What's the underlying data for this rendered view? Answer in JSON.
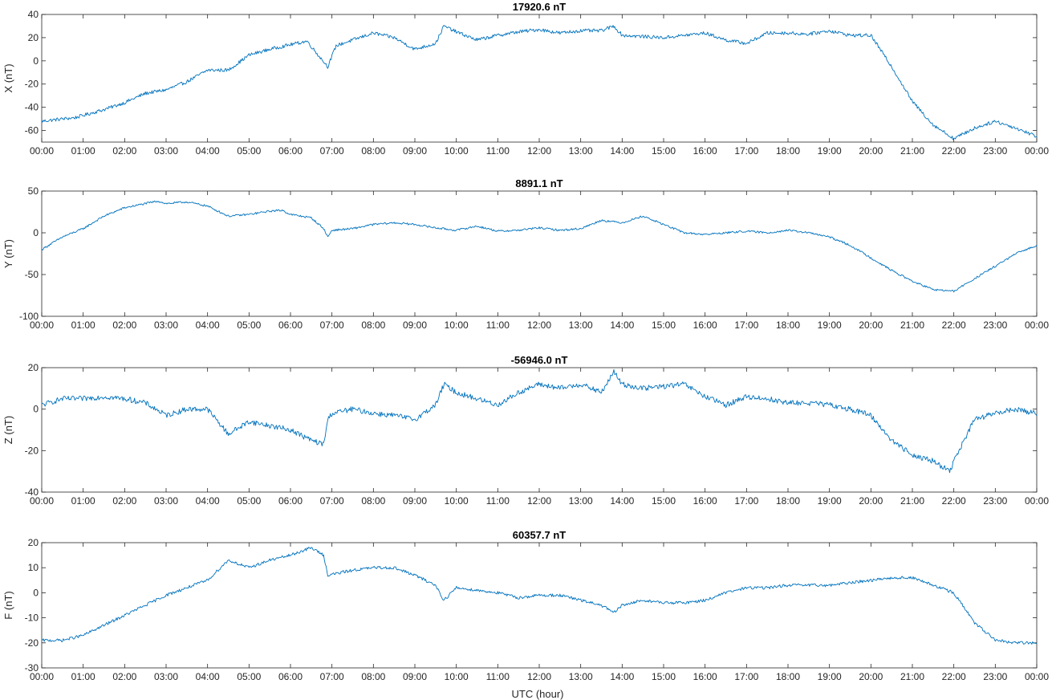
{
  "x_axis_label": "UTC (hour)",
  "chart_data": [
    {
      "type": "line",
      "title": "17920.6 nT",
      "ylabel": "X (nT)",
      "xlim": [
        0,
        24
      ],
      "ylim": [
        -70,
        40
      ],
      "yticks": [
        -60,
        -40,
        -20,
        0,
        20,
        40
      ],
      "xticks": [
        "00:00",
        "01:00",
        "02:00",
        "03:00",
        "04:00",
        "05:00",
        "06:00",
        "07:00",
        "08:00",
        "09:00",
        "10:00",
        "11:00",
        "12:00",
        "13:00",
        "14:00",
        "15:00",
        "16:00",
        "17:00",
        "18:00",
        "19:00",
        "20:00",
        "21:00",
        "22:00",
        "23:00",
        "00:00"
      ],
      "grid": false,
      "color": "#0072BD",
      "noise": 1.5,
      "x": [
        0,
        0.5,
        0.8,
        1.0,
        1.5,
        2.0,
        2.5,
        3.0,
        3.5,
        4.0,
        4.5,
        5.0,
        5.5,
        6.0,
        6.4,
        6.6,
        6.9,
        7.1,
        7.5,
        8.0,
        8.5,
        9.0,
        9.5,
        9.7,
        10.0,
        10.5,
        11.0,
        11.5,
        12.0,
        12.5,
        13.0,
        13.5,
        13.8,
        14.0,
        14.5,
        15.0,
        15.5,
        16.0,
        16.5,
        17.0,
        17.5,
        18.0,
        18.5,
        19.0,
        19.5,
        20.0,
        20.5,
        21.0,
        21.5,
        22.0,
        22.5,
        23.0,
        23.5,
        24.0
      ],
      "y": [
        -52,
        -50,
        -49,
        -47,
        -42,
        -36,
        -28,
        -25,
        -18,
        -8,
        -8,
        5,
        10,
        14,
        17,
        8,
        -5,
        13,
        18,
        24,
        20,
        10,
        15,
        30,
        25,
        18,
        22,
        25,
        27,
        24,
        26,
        26,
        30,
        22,
        21,
        20,
        22,
        24,
        18,
        15,
        24,
        24,
        23,
        26,
        22,
        22,
        -5,
        -35,
        -55,
        -67,
        -58,
        -52,
        -58,
        -65
      ]
    },
    {
      "type": "line",
      "title": "8891.1 nT",
      "ylabel": "Y (nT)",
      "xlim": [
        0,
        24
      ],
      "ylim": [
        -100,
        50
      ],
      "yticks": [
        -100,
        -50,
        0,
        50
      ],
      "xticks": [
        "00:00",
        "01:00",
        "02:00",
        "03:00",
        "04:00",
        "05:00",
        "06:00",
        "07:00",
        "08:00",
        "09:00",
        "10:00",
        "11:00",
        "12:00",
        "13:00",
        "14:00",
        "15:00",
        "16:00",
        "17:00",
        "18:00",
        "19:00",
        "20:00",
        "21:00",
        "22:00",
        "23:00",
        "00:00"
      ],
      "grid": false,
      "color": "#0072BD",
      "noise": 1.2,
      "x": [
        0,
        0.5,
        1.0,
        1.5,
        2.0,
        2.5,
        2.8,
        3.0,
        3.5,
        4.0,
        4.5,
        5.0,
        5.5,
        5.8,
        6.0,
        6.5,
        6.8,
        6.9,
        7.0,
        7.5,
        8.0,
        8.5,
        9.0,
        9.5,
        10.0,
        10.5,
        11.0,
        11.5,
        12.0,
        12.5,
        13.0,
        13.5,
        14.0,
        14.5,
        15.0,
        15.5,
        16.0,
        16.5,
        17.0,
        17.5,
        18.0,
        18.5,
        19.0,
        19.5,
        20.0,
        20.5,
        21.0,
        21.5,
        22.0,
        22.5,
        23.0,
        23.5,
        24.0
      ],
      "y": [
        -20,
        -5,
        5,
        20,
        30,
        35,
        38,
        35,
        37,
        32,
        20,
        22,
        26,
        27,
        22,
        18,
        5,
        -5,
        3,
        5,
        10,
        12,
        10,
        6,
        3,
        8,
        2,
        3,
        6,
        3,
        5,
        15,
        12,
        20,
        10,
        0,
        -2,
        0,
        2,
        0,
        3,
        0,
        -5,
        -15,
        -30,
        -45,
        -58,
        -68,
        -70,
        -55,
        -40,
        -25,
        -15
      ]
    },
    {
      "type": "line",
      "title": "-56946.0 nT",
      "ylabel": "Z (nT)",
      "xlim": [
        0,
        24
      ],
      "ylim": [
        -40,
        20
      ],
      "yticks": [
        -40,
        -20,
        0,
        20
      ],
      "xticks": [
        "00:00",
        "01:00",
        "02:00",
        "03:00",
        "04:00",
        "05:00",
        "06:00",
        "07:00",
        "08:00",
        "09:00",
        "10:00",
        "11:00",
        "12:00",
        "13:00",
        "14:00",
        "15:00",
        "16:00",
        "17:00",
        "18:00",
        "19:00",
        "20:00",
        "21:00",
        "22:00",
        "23:00",
        "00:00"
      ],
      "grid": false,
      "color": "#0072BD",
      "noise": 1.3,
      "x": [
        0,
        0.5,
        1.0,
        1.5,
        2.0,
        2.5,
        3.0,
        3.5,
        4.0,
        4.5,
        5.0,
        5.5,
        6.0,
        6.5,
        6.8,
        6.9,
        7.0,
        7.5,
        8.0,
        8.5,
        9.0,
        9.5,
        9.7,
        10.0,
        10.5,
        11.0,
        11.5,
        12.0,
        12.5,
        13.0,
        13.5,
        13.8,
        14.0,
        14.5,
        15.0,
        15.5,
        16.0,
        16.5,
        17.0,
        17.5,
        18.0,
        18.5,
        19.0,
        19.5,
        20.0,
        20.5,
        21.0,
        21.5,
        21.9,
        22.0,
        22.5,
        23.0,
        23.5,
        24.0
      ],
      "y": [
        2,
        5,
        5,
        6,
        5,
        3,
        -3,
        0,
        0,
        -12,
        -6,
        -8,
        -10,
        -15,
        -17,
        -5,
        -2,
        0,
        -2,
        -3,
        -5,
        2,
        12,
        8,
        5,
        2,
        8,
        12,
        10,
        12,
        8,
        18,
        12,
        10,
        11,
        12,
        6,
        2,
        6,
        5,
        3,
        3,
        2,
        0,
        -3,
        -15,
        -22,
        -25,
        -30,
        -25,
        -5,
        -2,
        0,
        -2
      ]
    },
    {
      "type": "line",
      "title": "60357.7 nT",
      "ylabel": "F (nT)",
      "xlim": [
        0,
        24
      ],
      "ylim": [
        -30,
        20
      ],
      "yticks": [
        -30,
        -20,
        -10,
        0,
        10,
        20
      ],
      "xticks": [
        "00:00",
        "01:00",
        "02:00",
        "03:00",
        "04:00",
        "05:00",
        "06:00",
        "07:00",
        "08:00",
        "09:00",
        "10:00",
        "11:00",
        "12:00",
        "13:00",
        "14:00",
        "15:00",
        "16:00",
        "17:00",
        "18:00",
        "19:00",
        "20:00",
        "21:00",
        "22:00",
        "23:00",
        "00:00"
      ],
      "grid": false,
      "color": "#0072BD",
      "noise": 0.6,
      "x": [
        0,
        0.5,
        1.0,
        1.5,
        2.0,
        2.5,
        3.0,
        3.5,
        4.0,
        4.5,
        5.0,
        5.5,
        6.0,
        6.5,
        6.8,
        6.9,
        7.5,
        8.0,
        8.5,
        9.0,
        9.5,
        9.7,
        10.0,
        10.5,
        11.0,
        11.5,
        12.0,
        12.5,
        13.0,
        13.5,
        13.8,
        14.0,
        14.5,
        15.0,
        15.5,
        16.0,
        16.5,
        17.0,
        17.5,
        18.0,
        18.5,
        19.0,
        19.5,
        20.0,
        20.5,
        21.0,
        21.5,
        22.0,
        22.5,
        23.0,
        23.5,
        24.0
      ],
      "y": [
        -19,
        -19,
        -17,
        -13,
        -9,
        -5,
        -1,
        2,
        5,
        13,
        10,
        13,
        15,
        18,
        15,
        7,
        9,
        10,
        10,
        7,
        3,
        -3,
        2,
        1,
        0,
        -2,
        -1,
        -1,
        -3,
        -5,
        -8,
        -5,
        -3,
        -4,
        -4,
        -3,
        0,
        2,
        2,
        3,
        3,
        3,
        4,
        5,
        6,
        6,
        3,
        0,
        -12,
        -19,
        -20,
        -20
      ]
    }
  ]
}
